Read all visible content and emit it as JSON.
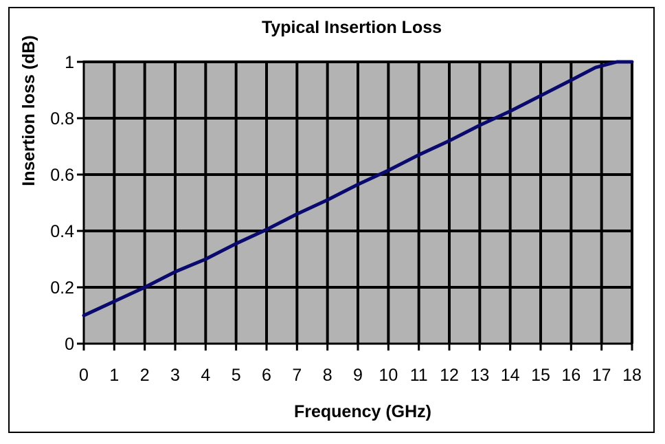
{
  "chart_data": {
    "type": "line",
    "title": "Typical Insertion Loss",
    "xlabel": "Frequency (GHz)",
    "ylabel": "Insertion loss (dB)",
    "xlim": [
      0,
      18
    ],
    "ylim": [
      0,
      1
    ],
    "x_ticks": [
      "0",
      "1",
      "2",
      "3",
      "4",
      "5",
      "6",
      "7",
      "8",
      "9",
      "10",
      "11",
      "12",
      "13",
      "14",
      "15",
      "16",
      "17",
      "18"
    ],
    "y_ticks": [
      "0",
      "0.2",
      "0.4",
      "0.6",
      "0.8",
      "1"
    ],
    "grid": true,
    "legend": "none",
    "series": [
      {
        "x": [
          0,
          1,
          2,
          3,
          4,
          5,
          6,
          7,
          8,
          9,
          10,
          11,
          12,
          13,
          14,
          15,
          16,
          16.8,
          17.5,
          18
        ],
        "y": [
          0.1,
          0.15,
          0.2,
          0.255,
          0.3,
          0.355,
          0.405,
          0.46,
          0.51,
          0.565,
          0.615,
          0.67,
          0.72,
          0.775,
          0.825,
          0.88,
          0.935,
          0.98,
          1.0,
          1.0
        ]
      }
    ],
    "colors": {
      "line": "#0a0a6e",
      "plot_background": "#b3b3b3",
      "grid": "#000000"
    }
  }
}
